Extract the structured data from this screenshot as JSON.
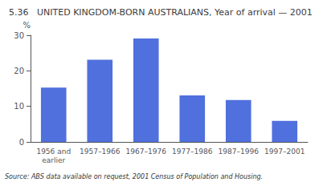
{
  "chart_data": {
    "type": "bar",
    "title": "5.36   UNITED KINGDOM-BORN AUSTRALIANS, Year of arrival — 2001",
    "categories": [
      "1956 and\nearlier",
      "1957–1966",
      "1967–1976",
      "1977–1986",
      "1987–1996",
      "1997–2001"
    ],
    "values": [
      15.3,
      23.1,
      29.1,
      13.1,
      11.8,
      5.9
    ],
    "ylabel": "%",
    "ylim": [
      0,
      30
    ],
    "yticks": [
      0,
      10,
      20,
      30
    ],
    "grid": false,
    "source": "Source: ABS data available on request, 2001 Census of Population and Housing."
  }
}
